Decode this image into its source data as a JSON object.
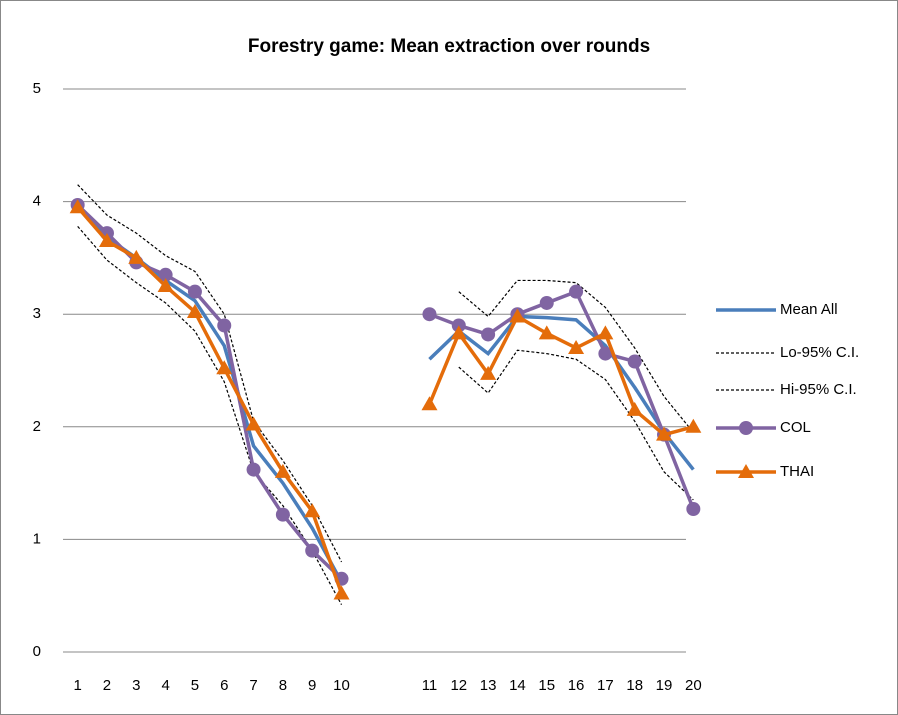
{
  "chart_data": {
    "type": "line",
    "title": "Forestry game: Mean extraction over rounds",
    "categories": [
      "1",
      "2",
      "3",
      "4",
      "5",
      "6",
      "7",
      "8",
      "9",
      "10",
      null,
      null,
      "11",
      "12",
      "13",
      "14",
      "15",
      "16",
      "17",
      "18",
      "19",
      "20"
    ],
    "series": [
      {
        "name": "Mean All",
        "color": "#4a7ebb",
        "dash": "solid",
        "marker": "none",
        "values": [
          3.95,
          3.68,
          3.5,
          3.3,
          3.12,
          2.72,
          1.83,
          1.5,
          1.1,
          0.62,
          null,
          null,
          2.6,
          2.85,
          2.65,
          2.98,
          2.97,
          2.95,
          2.72,
          2.35,
          1.95,
          1.62
        ]
      },
      {
        "name": "Lo-95% C.I.",
        "color": "#000000",
        "dash": "dotted",
        "marker": "none",
        "values": [
          3.78,
          3.48,
          3.28,
          3.1,
          2.85,
          2.4,
          1.6,
          1.3,
          0.9,
          0.42,
          null,
          null,
          null,
          2.53,
          2.3,
          2.68,
          2.65,
          2.6,
          2.42,
          2.05,
          1.6,
          1.35
        ]
      },
      {
        "name": "Hi-95% C.I.",
        "color": "#000000",
        "dash": "dotted",
        "marker": "none",
        "values": [
          4.15,
          3.88,
          3.72,
          3.52,
          3.38,
          3.0,
          2.05,
          1.7,
          1.3,
          0.8,
          null,
          null,
          null,
          3.2,
          2.98,
          3.3,
          3.3,
          3.28,
          3.06,
          2.7,
          2.27,
          1.95
        ]
      },
      {
        "name": "COL",
        "color": "#8064a2",
        "dash": "solid",
        "marker": "circle",
        "values": [
          3.97,
          3.72,
          3.46,
          3.35,
          3.2,
          2.9,
          1.62,
          1.22,
          0.9,
          0.65,
          null,
          null,
          3.0,
          2.9,
          2.82,
          3.0,
          3.1,
          3.2,
          2.65,
          2.58,
          1.93,
          1.27
        ]
      },
      {
        "name": "THAI",
        "color": "#e46c0a",
        "dash": "solid",
        "marker": "triangle",
        "values": [
          3.95,
          3.65,
          3.5,
          3.25,
          3.02,
          2.52,
          2.02,
          1.6,
          1.25,
          0.52,
          null,
          null,
          2.2,
          2.83,
          2.47,
          2.98,
          2.83,
          2.7,
          2.83,
          2.15,
          1.93,
          2.0
        ]
      }
    ],
    "ylim": [
      0,
      5
    ],
    "yticks": [
      0,
      1,
      2,
      3,
      4,
      5
    ],
    "grid": true,
    "legend": "right"
  }
}
